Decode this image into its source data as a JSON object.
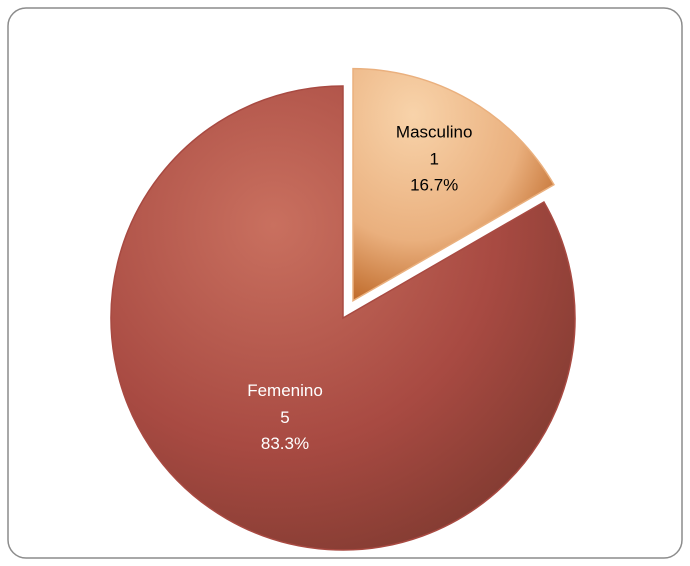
{
  "chart_data": {
    "type": "pie",
    "categories": [
      "Masculino",
      "Femenino"
    ],
    "values": [
      1,
      5
    ],
    "percentages": [
      16.7,
      83.3
    ],
    "percentage_labels": [
      "16.7%",
      "83.3%"
    ],
    "colors": [
      "#eab07e",
      "#a84a42"
    ],
    "exploded": [
      true,
      false
    ]
  }
}
